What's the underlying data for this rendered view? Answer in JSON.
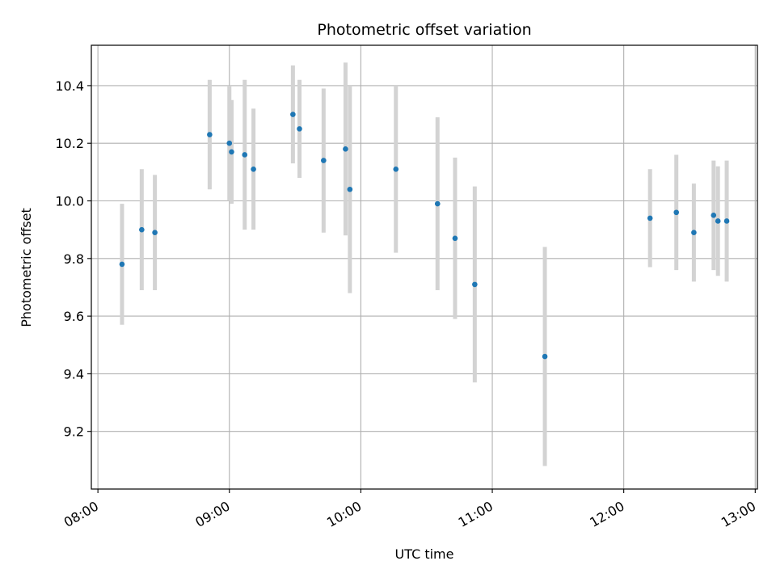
{
  "chart_data": {
    "type": "scatter",
    "title": "Photometric offset variation",
    "xlabel": "UTC time",
    "ylabel": "Photometric offset",
    "x_tick_labels": [
      "08:00",
      "09:00",
      "10:00",
      "11:00",
      "12:00",
      "13:00"
    ],
    "y_tick_labels": [
      "9.2",
      "9.4",
      "9.6",
      "9.8",
      "10.0",
      "10.2",
      "10.4"
    ],
    "y_ticks": [
      9.2,
      9.4,
      9.6,
      9.8,
      10.0,
      10.2,
      10.4
    ],
    "x_ticks": [
      "08:00",
      "09:00",
      "10:00",
      "11:00",
      "12:00",
      "13:00"
    ],
    "xlim": [
      "07:57",
      "13:01"
    ],
    "ylim": [
      9.0,
      10.54
    ],
    "grid": true,
    "colors": {
      "marker": "#1f77b4",
      "errorbar": "#d3d3d3",
      "grid": "#b0b0b0"
    },
    "series": [
      {
        "x": [
          "08:11",
          "08:20",
          "08:26",
          "08:51",
          "09:00",
          "09:01",
          "09:07",
          "09:11",
          "09:29",
          "09:32",
          "09:43",
          "09:53",
          "09:55",
          "10:16",
          "10:35",
          "10:43",
          "10:52",
          "11:24",
          "12:12",
          "12:24",
          "12:32",
          "12:41",
          "12:43",
          "12:47"
        ],
        "y": [
          9.78,
          9.9,
          9.89,
          10.23,
          10.2,
          10.17,
          10.16,
          10.11,
          10.3,
          10.25,
          10.14,
          10.18,
          10.04,
          10.11,
          9.99,
          9.87,
          9.71,
          9.46,
          9.94,
          9.96,
          9.89,
          9.95,
          9.93,
          9.93
        ],
        "yerr": [
          0.21,
          0.21,
          0.2,
          0.19,
          0.2,
          0.18,
          0.26,
          0.21,
          0.17,
          0.17,
          0.25,
          0.3,
          0.36,
          0.29,
          0.3,
          0.28,
          0.34,
          0.38,
          0.17,
          0.2,
          0.17,
          0.19,
          0.19,
          0.21
        ]
      }
    ]
  }
}
